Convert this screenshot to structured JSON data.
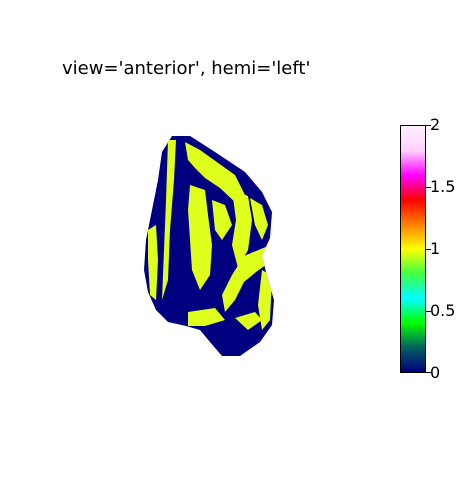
{
  "title": "view='anterior', hemi='left'",
  "colorbar": {
    "ticks": [
      "2",
      "1.5",
      "1",
      "0.5",
      "0"
    ],
    "min": 0,
    "max": 2,
    "colormap": "gist_ncar",
    "stops": [
      "#000080",
      "#006060",
      "#00ff00",
      "#00ffff",
      "#40ff40",
      "#ffff00",
      "#ff8000",
      "#ff0000",
      "#ff00ff",
      "#ffd0ff",
      "#fff0ff"
    ]
  },
  "brain": {
    "base_color": "#000080",
    "stripe_color": "#dfff1c"
  }
}
